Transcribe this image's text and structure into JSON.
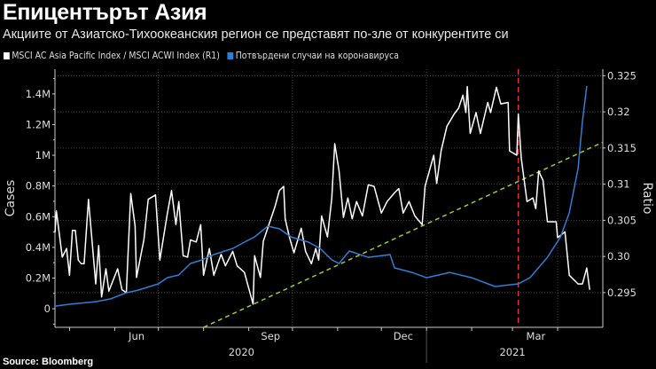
{
  "header": {
    "title": "Епицентърът Азия",
    "subtitle": "Акциите от Азиатско-Тихоокеанския регион се представят по-зле от конкурентите си"
  },
  "legend": [
    {
      "label": "MSCI AC Asia Pacific Index / MSCI ACWI Index (R1)",
      "color": "#ffffff"
    },
    {
      "label": "Потвърдени случаи на коронавируса",
      "color": "#2f7ed8"
    }
  ],
  "source": "Source: Bloomberg",
  "chart_data": {
    "type": "line",
    "title": "Епицентърът Азия",
    "x_unit": "days since 2020-04-21",
    "x_range": [
      0,
      376
    ],
    "x_ticks": [
      {
        "label": "Jun",
        "day": 56
      },
      {
        "label": "Sep",
        "day": 148
      },
      {
        "label": "Dec",
        "day": 239
      },
      {
        "label": "Mar",
        "day": 330
      }
    ],
    "month_starts": [
      10,
      41,
      71,
      102,
      133,
      163,
      194,
      224,
      255,
      286,
      314,
      345
    ],
    "quarter_gridlines": [
      71,
      163,
      255,
      345
    ],
    "years": [
      {
        "label": "2020",
        "day": 128
      },
      {
        "label": "2021",
        "day": 314
      }
    ],
    "year_separator_day": 255,
    "left_axis": {
      "label": "Cases",
      "range": [
        -121000,
        1561000
      ],
      "ticks": [
        0,
        200000,
        400000,
        600000,
        800000,
        1000000,
        1200000,
        1400000
      ],
      "tick_labels": [
        "0",
        "0.2M",
        "0.4M",
        "0.6M",
        "0.8M",
        "1M",
        "1.2M",
        "1.4M"
      ]
    },
    "right_axis": {
      "label": "Ratio",
      "range": [
        0.2902,
        0.3259
      ],
      "ticks": [
        0.295,
        0.3,
        0.305,
        0.31,
        0.315,
        0.32,
        0.325
      ],
      "tick_labels": [
        "0.295",
        "0.30",
        "0.305",
        "0.31",
        "0.315",
        "0.32",
        "0.325"
      ]
    },
    "grid": true,
    "series": [
      {
        "name": "MSCI AC Asia Pacific Index / MSCI ACWI Index (R1)",
        "axis": "right",
        "color": "#ffffff",
        "points": [
          [
            0,
            0.3033
          ],
          [
            1,
            0.3063
          ],
          [
            4,
            0.3015
          ],
          [
            5,
            0.2999
          ],
          [
            8,
            0.3011
          ],
          [
            10,
            0.2974
          ],
          [
            12,
            0.3036
          ],
          [
            14,
            0.3036
          ],
          [
            16,
            0.2995
          ],
          [
            18,
            0.299
          ],
          [
            20,
            0.299
          ],
          [
            23,
            0.3079
          ],
          [
            25,
            0.3032
          ],
          [
            28,
            0.2962
          ],
          [
            30,
            0.3015
          ],
          [
            32,
            0.2944
          ],
          [
            35,
            0.2983
          ],
          [
            37,
            0.2952
          ],
          [
            43,
            0.2983
          ],
          [
            46,
            0.2954
          ],
          [
            49,
            0.295
          ],
          [
            52,
            0.3087
          ],
          [
            55,
            0.3042
          ],
          [
            56,
            0.2971
          ],
          [
            61,
            0.3023
          ],
          [
            64,
            0.3079
          ],
          [
            69,
            0.3085
          ],
          [
            72,
            0.2995
          ],
          [
            77,
            0.3058
          ],
          [
            80,
            0.3091
          ],
          [
            83,
            0.3044
          ],
          [
            85,
            0.3076
          ],
          [
            88,
            0.3001
          ],
          [
            91,
            0.2999
          ],
          [
            93,
            0.3023
          ],
          [
            97,
            0.302
          ],
          [
            100,
            0.3044
          ],
          [
            102,
            0.2974
          ],
          [
            106,
            0.3011
          ],
          [
            109,
            0.2974
          ],
          [
            114,
            0.3003
          ],
          [
            117,
            0.2987
          ],
          [
            122,
            0.3007
          ],
          [
            125,
            0.2987
          ],
          [
            130,
            0.2978
          ],
          [
            136,
            0.2934
          ],
          [
            137,
            0.3001
          ],
          [
            141,
            0.2971
          ],
          [
            143,
            0.3021
          ],
          [
            151,
            0.3069
          ],
          [
            154,
            0.3091
          ],
          [
            157,
            0.3097
          ],
          [
            158,
            0.3052
          ],
          [
            161,
            0.3026
          ],
          [
            164,
            0.3005
          ],
          [
            169,
            0.3039
          ],
          [
            172,
            0.3007
          ],
          [
            176,
            0.299
          ],
          [
            179,
            0.3011
          ],
          [
            181,
            0.2995
          ],
          [
            183,
            0.3056
          ],
          [
            187,
            0.3027
          ],
          [
            190,
            0.3081
          ],
          [
            192,
            0.3156
          ],
          [
            195,
            0.3118
          ],
          [
            198,
            0.3054
          ],
          [
            201,
            0.3081
          ],
          [
            204,
            0.3052
          ],
          [
            207,
            0.3076
          ],
          [
            211,
            0.3056
          ],
          [
            215,
            0.3099
          ],
          [
            219,
            0.3097
          ],
          [
            224,
            0.306
          ],
          [
            228,
            0.3076
          ],
          [
            233,
            0.3088
          ],
          [
            236,
            0.3094
          ],
          [
            239,
            0.306
          ],
          [
            243,
            0.3076
          ],
          [
            247,
            0.3056
          ],
          [
            252,
            0.3044
          ],
          [
            254,
            0.3097
          ],
          [
            260,
            0.314
          ],
          [
            262,
            0.3101
          ],
          [
            265,
            0.3146
          ],
          [
            269,
            0.318
          ],
          [
            274,
            0.3197
          ],
          [
            277,
            0.3205
          ],
          [
            280,
            0.3223
          ],
          [
            282,
            0.3199
          ],
          [
            283,
            0.3235
          ],
          [
            285,
            0.317
          ],
          [
            289,
            0.3199
          ],
          [
            292,
            0.317
          ],
          [
            297,
            0.3213
          ],
          [
            299,
            0.3199
          ],
          [
            303,
            0.3234
          ],
          [
            306,
            0.3211
          ],
          [
            311,
            0.3213
          ],
          [
            312,
            0.3146
          ],
          [
            317,
            0.314
          ],
          [
            318,
            0.3197
          ],
          [
            320,
            0.3136
          ],
          [
            324,
            0.3076
          ],
          [
            328,
            0.3081
          ],
          [
            330,
            0.3066
          ],
          [
            332,
            0.3118
          ],
          [
            335,
            0.3105
          ],
          [
            338,
            0.3048
          ],
          [
            344,
            0.3048
          ],
          [
            345,
            0.3026
          ],
          [
            350,
            0.3034
          ],
          [
            353,
            0.2974
          ],
          [
            359,
            0.2962
          ],
          [
            362,
            0.2962
          ],
          [
            365,
            0.2984
          ],
          [
            367,
            0.2954
          ]
        ]
      },
      {
        "name": "Потвърдени случаи на коронавируса",
        "axis": "left",
        "color": "#2f7ed8",
        "points": [
          [
            0,
            17000
          ],
          [
            10,
            29000
          ],
          [
            28,
            46000
          ],
          [
            38,
            64000
          ],
          [
            49,
            104000
          ],
          [
            57,
            121000
          ],
          [
            71,
            162000
          ],
          [
            77,
            202000
          ],
          [
            85,
            220000
          ],
          [
            93,
            295000
          ],
          [
            101,
            318000
          ],
          [
            109,
            353000
          ],
          [
            122,
            393000
          ],
          [
            130,
            434000
          ],
          [
            137,
            468000
          ],
          [
            146,
            538000
          ],
          [
            154,
            521000
          ],
          [
            162,
            468000
          ],
          [
            174,
            434000
          ],
          [
            182,
            393000
          ],
          [
            190,
            318000
          ],
          [
            195,
            295000
          ],
          [
            202,
            376000
          ],
          [
            215,
            335000
          ],
          [
            230,
            353000
          ],
          [
            233,
            266000
          ],
          [
            245,
            237000
          ],
          [
            255,
            202000
          ],
          [
            271,
            237000
          ],
          [
            286,
            202000
          ],
          [
            302,
            145000
          ],
          [
            318,
            162000
          ],
          [
            326,
            202000
          ],
          [
            338,
            335000
          ],
          [
            347,
            468000
          ],
          [
            353,
            625000
          ],
          [
            359,
            914000
          ],
          [
            362,
            1220000
          ],
          [
            365,
            1452000
          ]
        ]
      }
    ],
    "trendline": {
      "axis": "right",
      "color": "#9acd32",
      "from": [
        102,
        0.2902
      ],
      "to": [
        376,
        0.3158
      ]
    },
    "marker_line": {
      "day": 318,
      "color": "#e8303a"
    }
  }
}
